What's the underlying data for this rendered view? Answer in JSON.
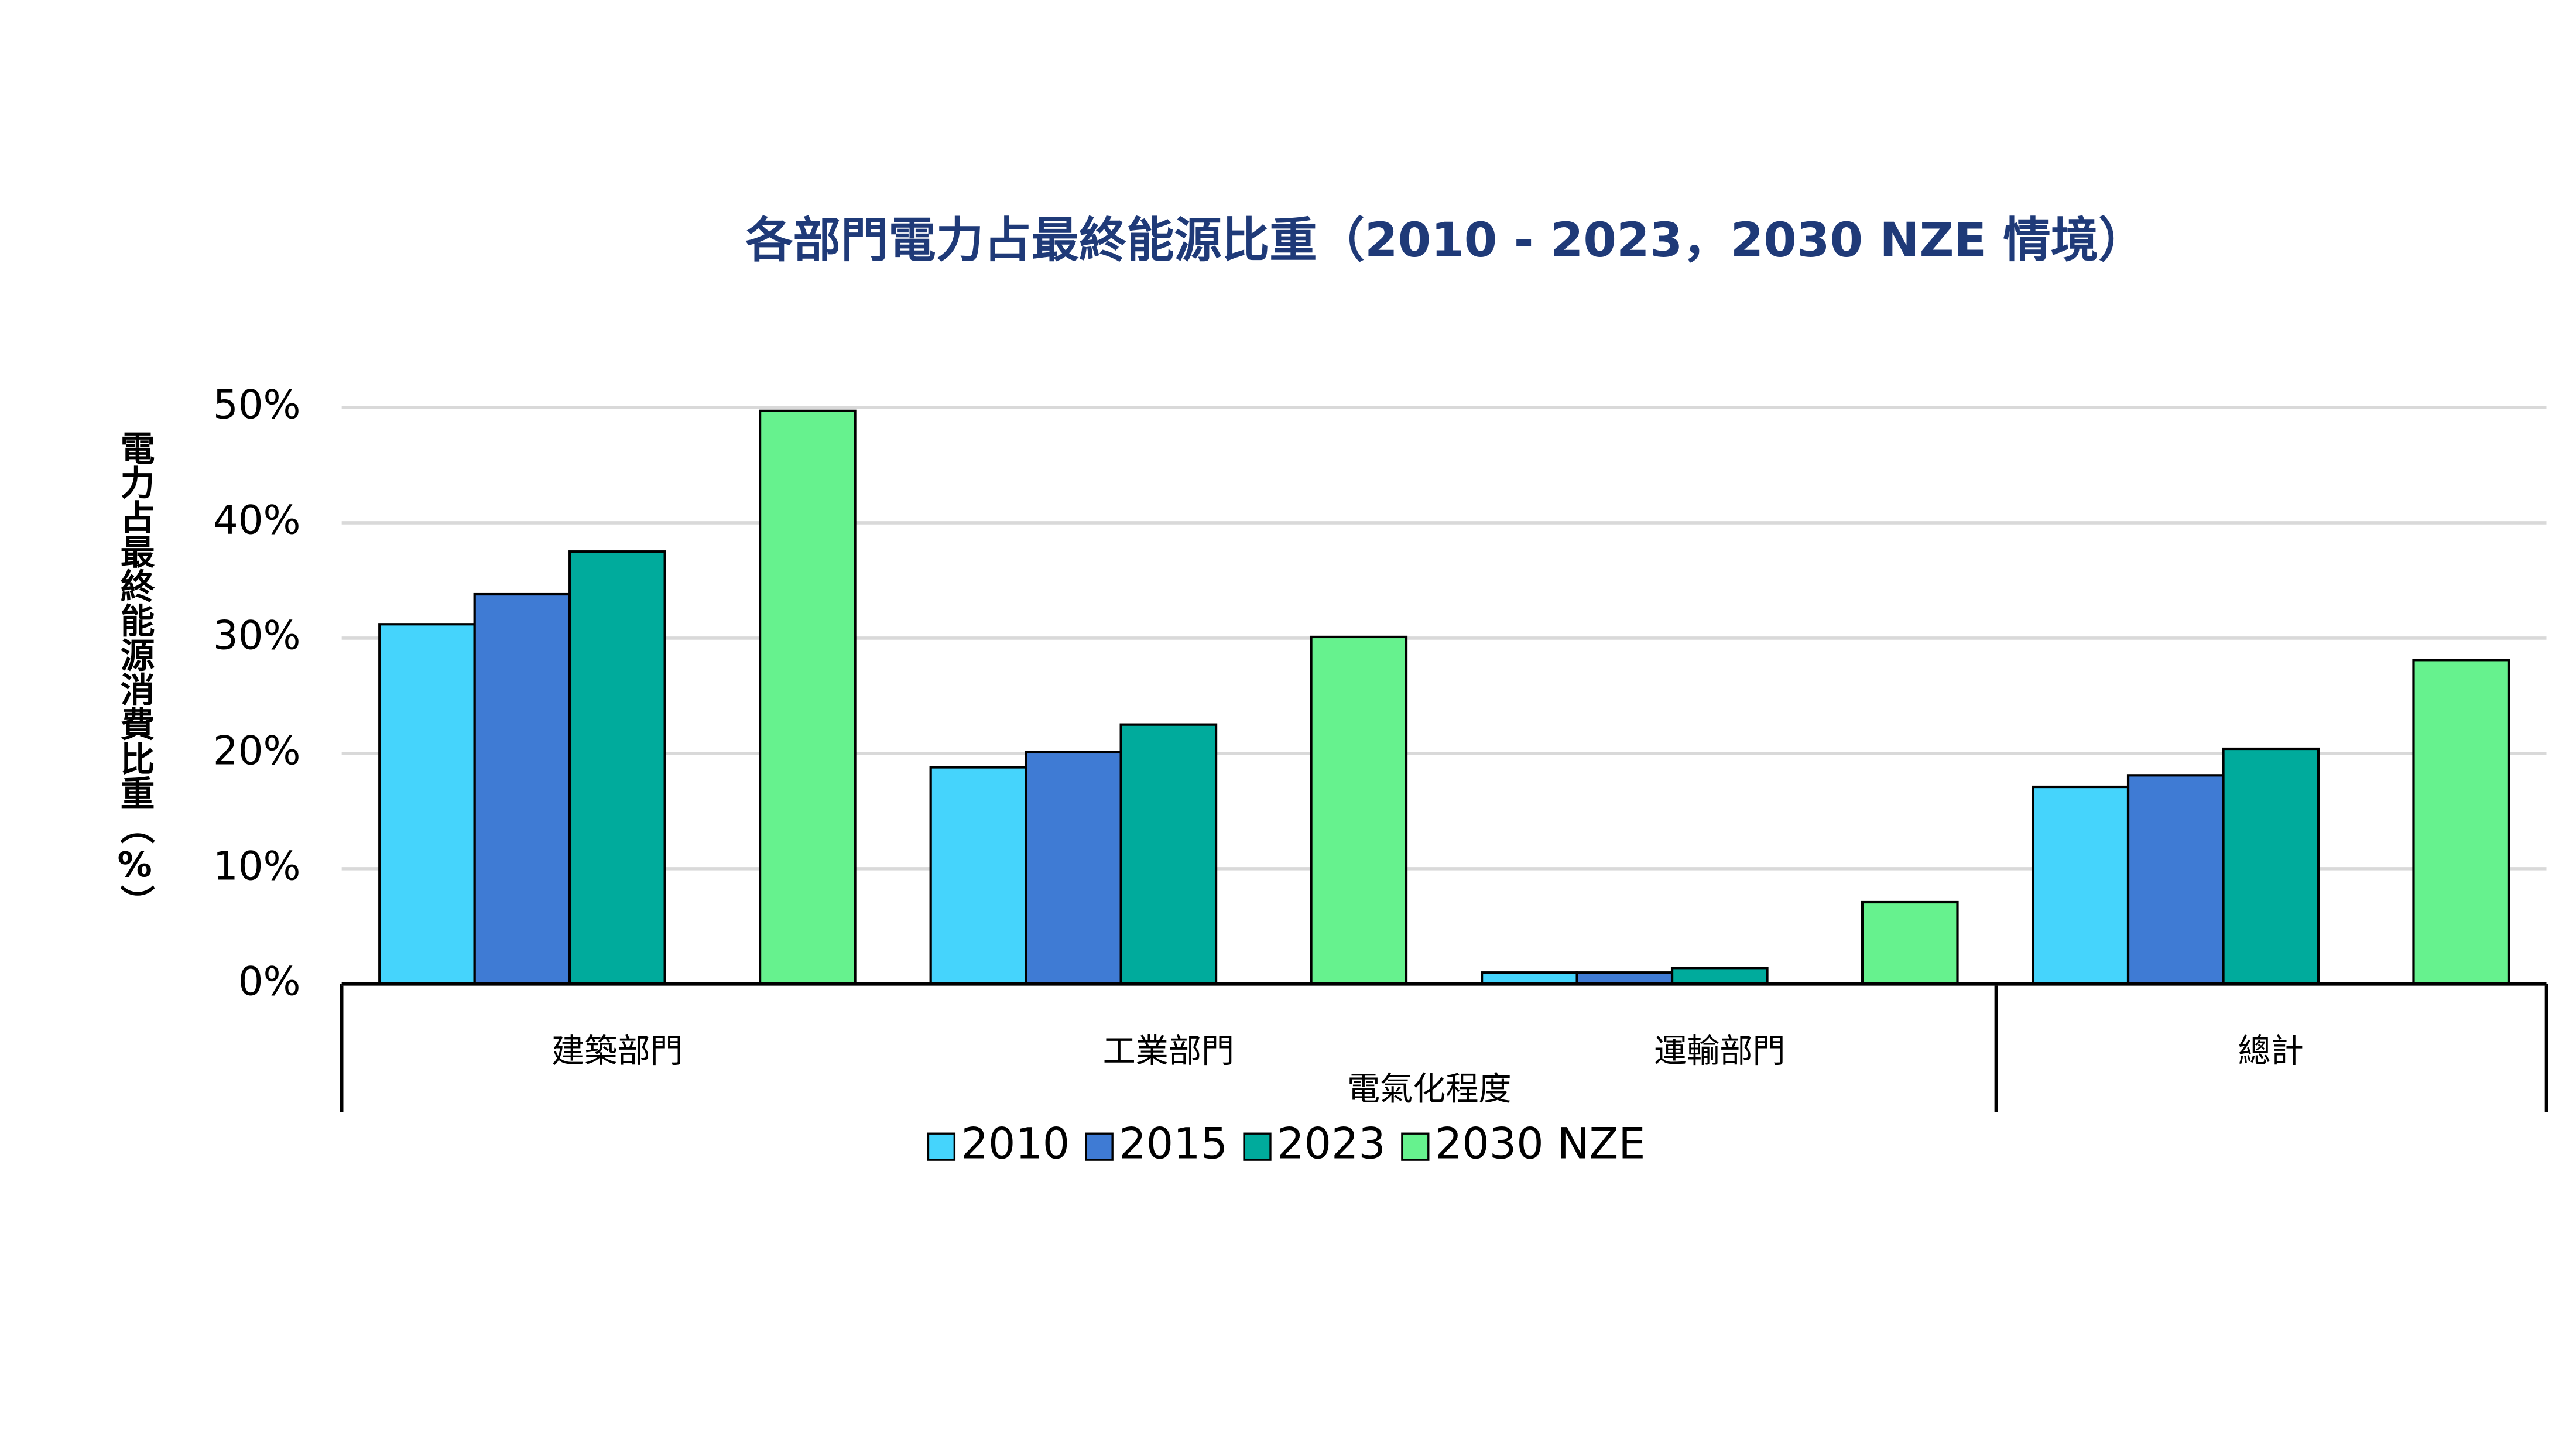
{
  "chart_data": {
    "type": "bar",
    "title": "各部門電力占最終能源比重（2010 - 2023，2030 NZE 情境）",
    "y_label": "電力占最終能源消費比重（%）",
    "x_label": "電氣化程度",
    "categories": [
      "建築部門",
      "工業部門",
      "運輸部門",
      "總計"
    ],
    "series": [
      {
        "name": "2010",
        "color": "#45d4fc",
        "values": [
          31.2,
          18.8,
          1.0,
          17.1
        ]
      },
      {
        "name": "2015",
        "color": "#3f7bd4",
        "values": [
          33.8,
          20.1,
          1.0,
          18.1
        ]
      },
      {
        "name": "2023",
        "color": "#00ab9c",
        "values": [
          37.5,
          22.5,
          1.4,
          20.4
        ]
      },
      {
        "name": "2030 NZE",
        "color": "#66f28e",
        "values": [
          49.7,
          30.1,
          7.1,
          28.1
        ]
      }
    ],
    "ylim": [
      0,
      50
    ],
    "yticks": [
      {
        "value": 0,
        "label": "0%"
      },
      {
        "value": 10,
        "label": "10%"
      },
      {
        "value": 20,
        "label": "20%"
      },
      {
        "value": 30,
        "label": "30%"
      },
      {
        "value": 40,
        "label": "40%"
      },
      {
        "value": 50,
        "label": "50%"
      }
    ],
    "grid": true,
    "legend": "bottom"
  }
}
